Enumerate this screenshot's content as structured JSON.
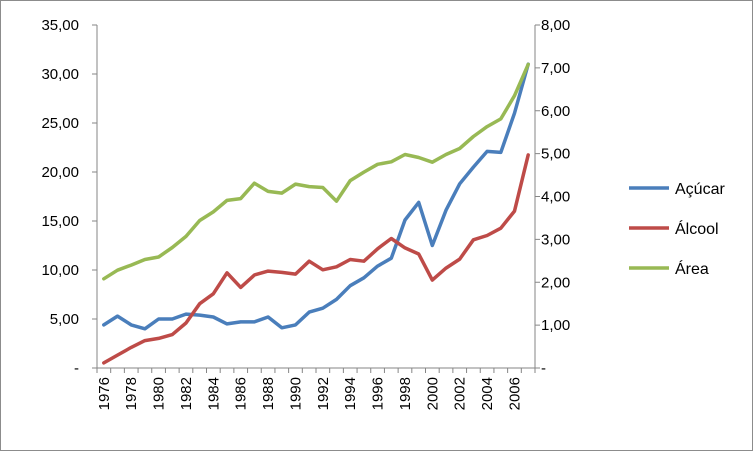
{
  "chart_data": {
    "type": "line",
    "title": "",
    "xlabel": "",
    "ylabel": "",
    "y2label": "",
    "x": [
      1976,
      1977,
      1978,
      1979,
      1980,
      1981,
      1982,
      1983,
      1984,
      1985,
      1986,
      1987,
      1988,
      1989,
      1990,
      1991,
      1992,
      1993,
      1994,
      1995,
      1996,
      1997,
      1998,
      1999,
      2000,
      2001,
      2002,
      2003,
      2004,
      2005,
      2006,
      2007
    ],
    "x_tick_labels": [
      "1976",
      "1978",
      "1980",
      "1982",
      "1984",
      "1986",
      "1988",
      "1990",
      "1992",
      "1994",
      "1996",
      "1998",
      "2000",
      "2002",
      "2004",
      "2006"
    ],
    "ylim": [
      0,
      35
    ],
    "y_tick_labels": [
      "-",
      "5,00",
      "10,00",
      "15,00",
      "20,00",
      "25,00",
      "30,00",
      "35,00"
    ],
    "y2lim": [
      0,
      8
    ],
    "y2_tick_labels": [
      "-",
      "1,00",
      "2,00",
      "3,00",
      "4,00",
      "5,00",
      "6,00",
      "7,00",
      "8,00"
    ],
    "grid": false,
    "legend_position": "right",
    "series": [
      {
        "name": "Açúcar",
        "axis": "left",
        "color": "#4a7ebb",
        "values": [
          4.4,
          5.3,
          4.4,
          4.0,
          5.0,
          5.0,
          5.5,
          5.4,
          5.2,
          4.5,
          4.7,
          4.7,
          5.2,
          4.1,
          4.4,
          5.7,
          6.1,
          7.0,
          8.4,
          9.2,
          10.4,
          11.2,
          15.1,
          16.9,
          12.5,
          16.1,
          18.8,
          20.5,
          22.1,
          22.0,
          26.0,
          31.0
        ]
      },
      {
        "name": "Álcool",
        "axis": "right",
        "color": "#be4b48",
        "values": [
          0.12,
          0.3,
          0.48,
          0.64,
          0.69,
          0.78,
          1.05,
          1.5,
          1.73,
          2.22,
          1.88,
          2.17,
          2.26,
          2.23,
          2.19,
          2.49,
          2.29,
          2.36,
          2.53,
          2.49,
          2.78,
          3.02,
          2.8,
          2.66,
          2.05,
          2.33,
          2.54,
          2.99,
          3.09,
          3.26,
          3.66,
          4.97
        ]
      },
      {
        "name": "Área",
        "axis": "right",
        "color": "#98b954",
        "values": [
          2.08,
          2.28,
          2.4,
          2.53,
          2.59,
          2.81,
          3.07,
          3.44,
          3.64,
          3.91,
          3.95,
          4.31,
          4.12,
          4.08,
          4.29,
          4.23,
          4.21,
          3.89,
          4.37,
          4.57,
          4.75,
          4.81,
          4.98,
          4.91,
          4.8,
          4.98,
          5.12,
          5.4,
          5.63,
          5.81,
          6.35,
          7.08
        ]
      }
    ]
  }
}
